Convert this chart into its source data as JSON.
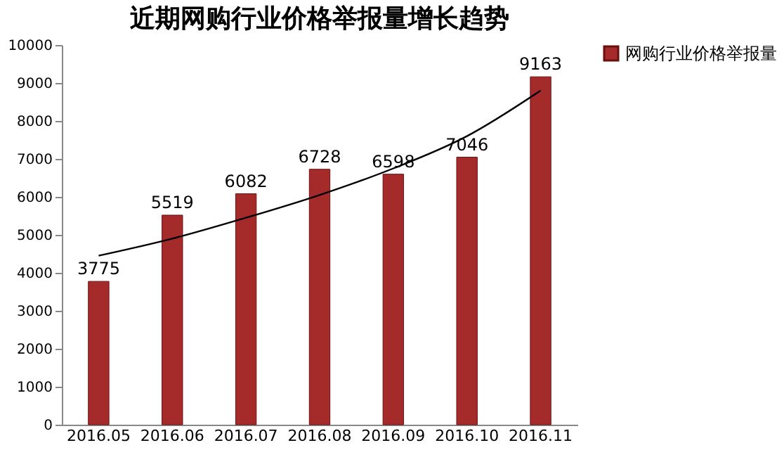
{
  "chart_data": {
    "type": "bar",
    "title": "近期网购行业价格举报量增长趋势",
    "categories": [
      "2016.05",
      "2016.06",
      "2016.07",
      "2016.08",
      "2016.09",
      "2016.10",
      "2016.11"
    ],
    "series": [
      {
        "name": "网购行业价格举报量",
        "color": "#a52a2a",
        "values": [
          3775,
          5519,
          6082,
          6728,
          6598,
          7046,
          9163
        ],
        "value_labels": [
          "3775",
          "5519",
          "6082",
          "6728",
          "6598",
          "7046",
          "9163"
        ]
      },
      {
        "type": "line",
        "color": "#000000",
        "x": [
          "2016.05",
          "2016.06",
          "2016.07",
          "2016.08",
          "2016.09",
          "2016.10",
          "2016.11"
        ],
        "values": [
          4450,
          4900,
          5450,
          6050,
          6750,
          7600,
          8800
        ]
      }
    ],
    "ylim": [
      0,
      10000
    ],
    "yticks": [
      0,
      1000,
      2000,
      3000,
      4000,
      5000,
      6000,
      7000,
      8000,
      9000,
      10000
    ],
    "grid": false,
    "legend": "right",
    "marker": "none",
    "line_style": "solid"
  }
}
